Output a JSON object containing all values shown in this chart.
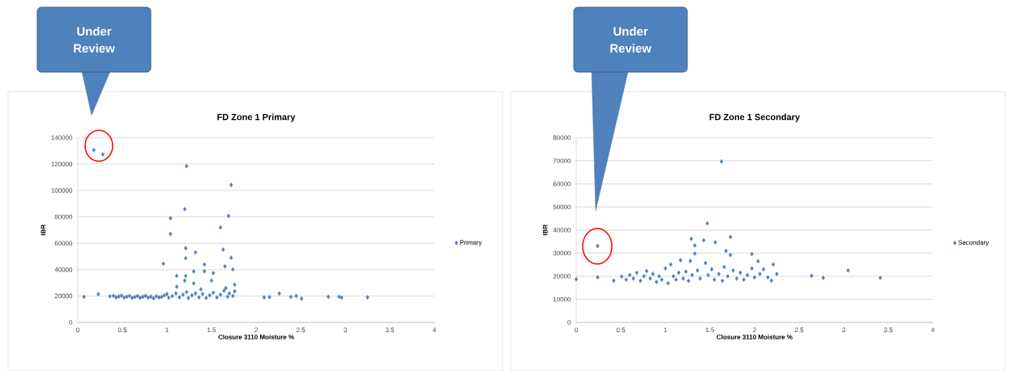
{
  "chart_data": [
    {
      "type": "scatter",
      "title": "FD Zone 1 Primary",
      "xlabel": "Closure 3110 Moisture %",
      "ylabel": "IBR",
      "xlim": [
        0,
        4
      ],
      "ylim": [
        0,
        140000
      ],
      "xticks": [
        0,
        0.5,
        1,
        1.5,
        2,
        2.5,
        3,
        3.5,
        4
      ],
      "yticks": [
        0,
        20000,
        40000,
        60000,
        80000,
        100000,
        120000,
        140000
      ],
      "grid": "y",
      "legend": "right",
      "marker": "diamond",
      "annotations": [
        "Under Review"
      ],
      "series": [
        {
          "name": "Primary",
          "color": "#4f81bd",
          "x": [
            0.07,
            0.18,
            0.28,
            0.23,
            0.36,
            0.4,
            0.43,
            0.46,
            0.49,
            0.52,
            0.55,
            0.58,
            0.61,
            0.64,
            0.67,
            0.7,
            0.73,
            0.76,
            0.79,
            0.82,
            0.85,
            0.88,
            0.91,
            0.94,
            0.97,
            1.0,
            1.02,
            0.96,
            1.04,
            1.04,
            1.22,
            1.2,
            1.21,
            1.21,
            1.11,
            1.21,
            1.2,
            1.32,
            1.3,
            1.3,
            1.42,
            1.42,
            1.52,
            1.5,
            1.6,
            1.63,
            1.69,
            1.72,
            1.65,
            1.72,
            1.74,
            1.76,
            1.11,
            1.06,
            1.1,
            1.14,
            1.18,
            1.22,
            1.24,
            1.28,
            1.32,
            1.36,
            1.4,
            1.44,
            1.48,
            1.52,
            1.56,
            1.6,
            1.64,
            1.68,
            1.7,
            1.74,
            1.76,
            1.66,
            1.38,
            2.09,
            2.15,
            2.26,
            2.39,
            2.45,
            2.51,
            2.81,
            2.93,
            2.96,
            3.25
          ],
          "values": [
            19400,
            130700,
            127300,
            21400,
            19800,
            20200,
            19000,
            19600,
            20300,
            18800,
            19500,
            20100,
            18500,
            19200,
            20000,
            18600,
            19400,
            20200,
            18800,
            19600,
            18200,
            19800,
            18900,
            19300,
            20400,
            21500,
            18700,
            44500,
            79000,
            67000,
            118500,
            85800,
            56200,
            48600,
            35300,
            35300,
            31700,
            53100,
            38600,
            29600,
            43900,
            38800,
            37400,
            31700,
            71900,
            55200,
            80700,
            104200,
            42500,
            49000,
            40200,
            28600,
            27000,
            20000,
            22000,
            19000,
            21000,
            23000,
            18500,
            20500,
            22000,
            19000,
            21500,
            18500,
            20500,
            22500,
            19000,
            21000,
            24000,
            19500,
            22000,
            20000,
            23500,
            26000,
            25000,
            19000,
            19200,
            21900,
            19400,
            20000,
            18000,
            19400,
            19500,
            18800,
            19000
          ]
        }
      ]
    },
    {
      "type": "scatter",
      "title": "FD Zone 1 Secondary",
      "xlabel": "Closure 3110 Moisture %",
      "ylabel": "IBR",
      "xlim": [
        0,
        4
      ],
      "ylim": [
        0,
        80000
      ],
      "xticks": [
        0,
        0.5,
        1,
        1.5,
        2,
        2.5,
        3,
        3.5,
        4
      ],
      "yticks": [
        0,
        10000,
        20000,
        30000,
        40000,
        50000,
        60000,
        70000,
        80000
      ],
      "grid": "y",
      "legend": "right",
      "marker": "diamond",
      "annotations": [
        "Under Review"
      ],
      "series": [
        {
          "name": "Secondary",
          "color": "#4f81bd",
          "x": [
            0,
            0.24,
            0.24,
            0.42,
            0.51,
            0.56,
            0.6,
            0.64,
            0.68,
            0.72,
            0.76,
            0.79,
            0.83,
            0.86,
            0.9,
            0.93,
            0.96,
            1.0,
            1.03,
            1.06,
            1.09,
            1.12,
            1.15,
            1.17,
            1.2,
            1.23,
            1.26,
            1.28,
            1.3,
            1.33,
            1.33,
            1.29,
            1.36,
            1.39,
            1.43,
            1.45,
            1.47,
            1.48,
            1.52,
            1.56,
            1.55,
            1.6,
            1.63,
            1.64,
            1.66,
            1.68,
            1.7,
            1.73,
            1.73,
            1.76,
            1.8,
            1.84,
            1.88,
            1.92,
            1.97,
            1.97,
            2.0,
            2.04,
            2.06,
            2.1,
            2.15,
            2.19,
            2.21,
            2.25,
            2.64,
            2.77,
            3.05,
            3.41
          ],
          "values": [
            18700,
            33100,
            19500,
            18100,
            19900,
            18500,
            20500,
            19000,
            21500,
            18000,
            20000,
            22200,
            19000,
            21000,
            17500,
            20000,
            18500,
            23400,
            17000,
            25100,
            20000,
            18500,
            21500,
            26900,
            19000,
            22000,
            18000,
            26600,
            20500,
            33300,
            29800,
            36200,
            22500,
            19000,
            35600,
            25700,
            42900,
            20500,
            23000,
            34700,
            18500,
            21000,
            69700,
            18000,
            24000,
            31000,
            20000,
            29200,
            37000,
            22500,
            19000,
            21500,
            18500,
            20500,
            29600,
            23400,
            19500,
            26500,
            21000,
            23000,
            19500,
            18100,
            25100,
            21000,
            20200,
            19300,
            22500,
            19300
          ]
        }
      ]
    }
  ]
}
